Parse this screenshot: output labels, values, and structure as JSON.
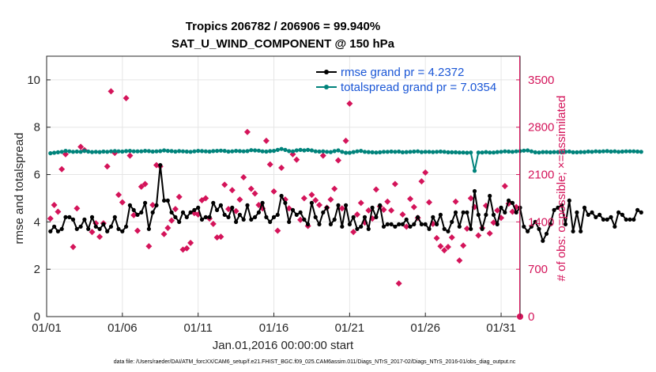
{
  "chart_data": {
    "type": "line",
    "title": "Tropics 206782 / 206906 = 99.940%",
    "subtitle": "SAT_U_WIND_COMPONENT @ 150 hPa",
    "xlabel": "Jan.01,2016 00:00:00 start",
    "ylabel": "rmse and totalspread",
    "y2label": "# of obs: o=possible; ×=assimilated",
    "footnote": "data file: /Users/raeder/DAI/ATM_forcXX/CAM6_setup/f.e21.FHIST_BGC.f09_025.CAM6assim.011/Diags_NTrS_2017-02/Diags_NTrS_2016-01/obs_diag_output.nc",
    "xlim": [
      1,
      32.25
    ],
    "ylim": [
      0,
      11
    ],
    "y2lim": [
      0,
      3850
    ],
    "grid": true,
    "legend_position": "top-right",
    "x_ticks": [
      1,
      6,
      11,
      16,
      21,
      26,
      31
    ],
    "x_tick_labels": [
      "01/01",
      "01/06",
      "01/11",
      "01/16",
      "01/21",
      "01/26",
      "01/31"
    ],
    "y_ticks": [
      0,
      2,
      4,
      6,
      8,
      10
    ],
    "y_tick_labels": [
      "0",
      "2",
      "4",
      "6",
      "8",
      "10"
    ],
    "y2_ticks": [
      0,
      700,
      1400,
      2100,
      2800,
      3500
    ],
    "y2_tick_labels": [
      "0",
      "700",
      "1400",
      "2100",
      "2800",
      "3500"
    ],
    "series": [
      {
        "name": "rmse grand pr = 4.2372",
        "color": "#000000",
        "axis": "left",
        "start": 1.25,
        "step": 0.25,
        "values": [
          3.6,
          3.8,
          3.6,
          3.7,
          4.2,
          4.2,
          4.1,
          3.7,
          3.8,
          4.1,
          3.7,
          4.2,
          3.8,
          3.7,
          3.9,
          3.6,
          3.8,
          4.2,
          3.7,
          3.6,
          3.8,
          4.7,
          4.5,
          4.3,
          4.4,
          4.8,
          3.7,
          4.4,
          4.7,
          6.4,
          4.9,
          4.9,
          4.4,
          4.2,
          4.0,
          4.4,
          4.2,
          4.4,
          4.5,
          4.6,
          4.1,
          4.2,
          4.2,
          4.8,
          4.5,
          4.7,
          4.3,
          4.2,
          4.6,
          4.0,
          4.3,
          4.1,
          4.7,
          4.1,
          4.2,
          4.4,
          4.8,
          4.2,
          4.0,
          4.2,
          4.3,
          5.1,
          4.8,
          4.0,
          4.5,
          4.3,
          4.4,
          4.1,
          3.9,
          4.8,
          4.2,
          3.9,
          4.4,
          4.6,
          3.9,
          4.1,
          4.7,
          3.8,
          4.7,
          3.9,
          4.2,
          3.7,
          3.8,
          4.2,
          3.7,
          4.6,
          4.2,
          4.7,
          3.8,
          3.9,
          3.9,
          3.8,
          3.9,
          3.9,
          4.1,
          3.8,
          3.9,
          4.2,
          3.9,
          3.9,
          3.7,
          4.2,
          3.9,
          4.3,
          3.7,
          3.6,
          4.0,
          4.4,
          3.8,
          4.4,
          4.4,
          3.7,
          5.3,
          4.3,
          3.7,
          4.3,
          5.1,
          4.3,
          3.9,
          4.6,
          4.4,
          4.9,
          4.8,
          4.4,
          4.6,
          3.8,
          3.6,
          3.8,
          4.0,
          3.7,
          3.2,
          3.5,
          3.9,
          4.5,
          4.6,
          4.7,
          3.9,
          4.9,
          3.6,
          4.4,
          3.6,
          4.6,
          4.3,
          4.4,
          4.2,
          4.3,
          4.1,
          4.1,
          4.2,
          3.8,
          4.4,
          4.3,
          4.1,
          4.1,
          4.1,
          4.5,
          4.4
        ]
      },
      {
        "name": "totalspread grand pr = 7.0354",
        "color": "#00837b",
        "axis": "left",
        "start": 1.25,
        "step": 0.25,
        "values": [
          6.9,
          6.92,
          6.94,
          6.96,
          7.0,
          6.98,
          6.96,
          6.97,
          6.96,
          7.0,
          6.97,
          6.95,
          6.96,
          6.95,
          6.97,
          6.96,
          6.98,
          6.99,
          6.98,
          6.97,
          6.99,
          7.0,
          6.98,
          6.98,
          6.98,
          7.0,
          6.99,
          6.97,
          6.98,
          6.99,
          7.02,
          7.0,
          6.99,
          6.97,
          6.99,
          6.98,
          6.97,
          6.96,
          6.98,
          7.0,
          6.99,
          6.98,
          6.97,
          6.99,
          7.0,
          7.01,
          7.0,
          6.97,
          6.98,
          7.0,
          6.99,
          6.98,
          6.99,
          7.03,
          7.02,
          7.01,
          6.98,
          6.97,
          6.99,
          7.0,
          7.04,
          7.08,
          7.04,
          6.99,
          6.98,
          7.02,
          7.04,
          7.02,
          7.04,
          7.02,
          6.98,
          6.97,
          6.98,
          6.96,
          6.95,
          6.99,
          7.02,
          6.96,
          6.92,
          6.92,
          6.95,
          6.98,
          7.0,
          6.96,
          6.95,
          6.94,
          6.93,
          6.94,
          6.96,
          6.96,
          6.97,
          6.96,
          6.97,
          6.94,
          6.95,
          6.96,
          6.97,
          6.98,
          6.95,
          6.96,
          6.96,
          6.95,
          6.96,
          6.97,
          6.96,
          6.94,
          6.94,
          6.94,
          6.93,
          6.93,
          6.92,
          6.93,
          6.16,
          6.93,
          6.93,
          6.95,
          6.93,
          6.93,
          6.95,
          6.96,
          6.98,
          6.97,
          6.96,
          6.98,
          6.99,
          7.01,
          7.02,
          6.98,
          6.94,
          6.93,
          6.95,
          6.95,
          6.94,
          6.95,
          6.95,
          6.94,
          6.96,
          6.97,
          6.94,
          6.94,
          6.95,
          6.95,
          6.97,
          6.96,
          6.98,
          6.97,
          6.98,
          6.99,
          6.97,
          6.98,
          6.96,
          6.97,
          6.98,
          6.98,
          6.98,
          6.97,
          6.96
        ]
      }
    ],
    "observations": {
      "name": "# of obs assimilated",
      "color": "#d4145a",
      "axis": "right",
      "points": [
        [
          1.25,
          1450
        ],
        [
          1.5,
          1650
        ],
        [
          1.75,
          1550
        ],
        [
          2.0,
          2180
        ],
        [
          2.25,
          2400
        ],
        [
          2.75,
          1030
        ],
        [
          3.0,
          1600
        ],
        [
          3.25,
          2510
        ],
        [
          3.5,
          2460
        ],
        [
          4.0,
          1250
        ],
        [
          4.25,
          1380
        ],
        [
          4.5,
          1180
        ],
        [
          4.75,
          1380
        ],
        [
          5.0,
          2220
        ],
        [
          5.25,
          3330
        ],
        [
          5.5,
          2420
        ],
        [
          5.75,
          1800
        ],
        [
          6.0,
          1690
        ],
        [
          6.25,
          3230
        ],
        [
          6.5,
          2380
        ],
        [
          6.75,
          1500
        ],
        [
          7.0,
          1270
        ],
        [
          7.25,
          1920
        ],
        [
          7.5,
          1960
        ],
        [
          7.75,
          1040
        ],
        [
          8.0,
          1650
        ],
        [
          8.25,
          2240
        ],
        [
          8.5,
          2220
        ],
        [
          8.75,
          1220
        ],
        [
          9.0,
          1310
        ],
        [
          9.25,
          1420
        ],
        [
          9.5,
          1590
        ],
        [
          9.75,
          1770
        ],
        [
          10.0,
          990
        ],
        [
          10.25,
          1010
        ],
        [
          10.5,
          1090
        ],
        [
          10.75,
          1530
        ],
        [
          11.0,
          1510
        ],
        [
          11.25,
          1720
        ],
        [
          11.5,
          1750
        ],
        [
          11.75,
          1450
        ],
        [
          12.0,
          1370
        ],
        [
          12.25,
          1170
        ],
        [
          12.5,
          1180
        ],
        [
          12.75,
          1950
        ],
        [
          13.0,
          1590
        ],
        [
          13.25,
          1870
        ],
        [
          13.5,
          1560
        ],
        [
          13.75,
          1730
        ],
        [
          14.0,
          2060
        ],
        [
          14.25,
          2730
        ],
        [
          14.5,
          1890
        ],
        [
          14.75,
          1820
        ],
        [
          15.0,
          1650
        ],
        [
          15.25,
          1600
        ],
        [
          15.5,
          2600
        ],
        [
          15.75,
          2250
        ],
        [
          16.0,
          1850
        ],
        [
          16.25,
          1270
        ],
        [
          16.5,
          2200
        ],
        [
          16.75,
          1730
        ],
        [
          17.0,
          1600
        ],
        [
          17.25,
          2400
        ],
        [
          17.5,
          2320
        ],
        [
          17.75,
          1430
        ],
        [
          18.0,
          1750
        ],
        [
          18.25,
          1340
        ],
        [
          18.5,
          1800
        ],
        [
          18.75,
          1720
        ],
        [
          19.0,
          1650
        ],
        [
          19.25,
          2380
        ],
        [
          19.5,
          1610
        ],
        [
          19.75,
          1730
        ],
        [
          20.0,
          1890
        ],
        [
          20.25,
          2310
        ],
        [
          20.5,
          1600
        ],
        [
          20.75,
          2600
        ],
        [
          21.0,
          3150
        ],
        [
          21.25,
          1250
        ],
        [
          21.5,
          1510
        ],
        [
          21.75,
          1680
        ],
        [
          22.0,
          1390
        ],
        [
          22.25,
          1570
        ],
        [
          22.5,
          1450
        ],
        [
          22.75,
          1880
        ],
        [
          23.0,
          1630
        ],
        [
          23.25,
          1580
        ],
        [
          23.5,
          1700
        ],
        [
          23.75,
          1570
        ],
        [
          24.0,
          1960
        ],
        [
          24.25,
          490
        ],
        [
          24.5,
          1510
        ],
        [
          24.75,
          1330
        ],
        [
          25.0,
          1740
        ],
        [
          25.25,
          1620
        ],
        [
          25.5,
          1460
        ],
        [
          25.75,
          2000
        ],
        [
          26.0,
          2130
        ],
        [
          26.25,
          1690
        ],
        [
          26.5,
          1370
        ],
        [
          26.75,
          1160
        ],
        [
          27.0,
          1040
        ],
        [
          27.25,
          980
        ],
        [
          27.5,
          1030
        ],
        [
          27.75,
          1170
        ],
        [
          28.0,
          1700
        ],
        [
          28.25,
          830
        ],
        [
          28.5,
          1050
        ],
        [
          28.75,
          1300
        ],
        [
          29.0,
          1750
        ],
        [
          29.25,
          1620
        ],
        [
          29.5,
          1200
        ],
        [
          29.75,
          1310
        ],
        [
          30.0,
          1640
        ],
        [
          30.25,
          1230
        ],
        [
          30.5,
          1390
        ],
        [
          30.75,
          1570
        ],
        [
          31.0,
          1460
        ],
        [
          31.25,
          1930
        ],
        [
          31.5,
          1670
        ],
        [
          31.75,
          1550
        ],
        [
          32.0,
          1620
        ]
      ]
    },
    "extra_markers": [
      [
        32.25,
        0
      ]
    ]
  }
}
